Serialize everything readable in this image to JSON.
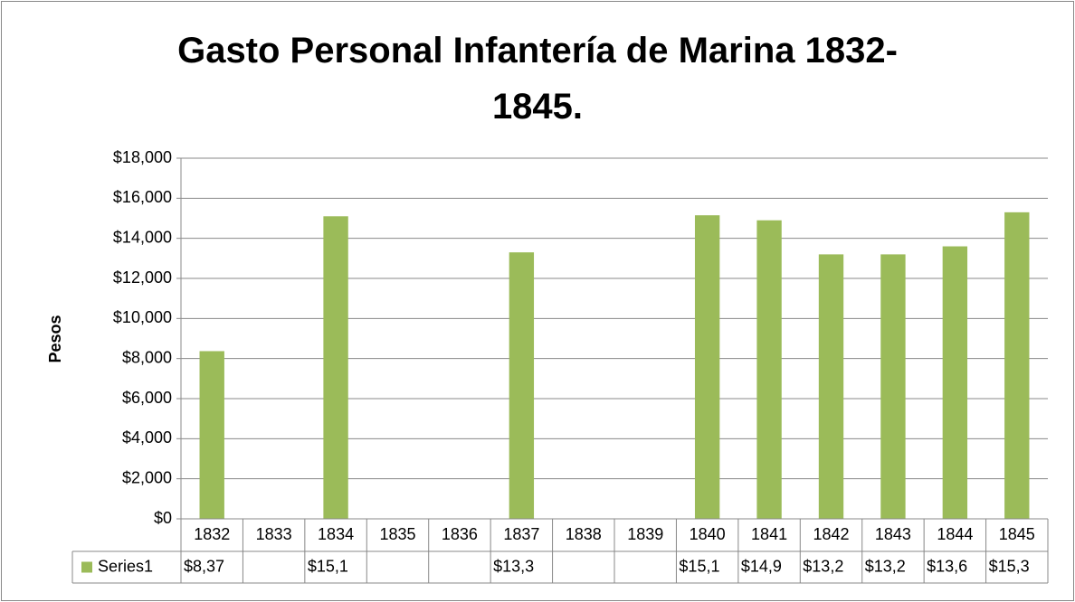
{
  "chart_data": {
    "type": "bar",
    "title": "Gasto Personal Infantería de Marina 1832-1845.",
    "y_label": "Pesos",
    "categories": [
      "1832",
      "1833",
      "1834",
      "1835",
      "1836",
      "1837",
      "1838",
      "1839",
      "1840",
      "1841",
      "1842",
      "1843",
      "1844",
      "1845"
    ],
    "series": [
      {
        "name": "Series1",
        "color": "#9bbb59",
        "values": [
          8370,
          null,
          15100,
          null,
          null,
          13300,
          null,
          null,
          15150,
          14900,
          13200,
          13200,
          13600,
          15300
        ],
        "value_labels": [
          "$8,37",
          null,
          "$15,1",
          null,
          null,
          "$13,3",
          null,
          null,
          "$15,1",
          "$14,9",
          "$13,2",
          "$13,2",
          "$13,6",
          "$15,3"
        ]
      }
    ],
    "ylim": [
      0,
      18000
    ],
    "yticks": [
      {
        "value": 0,
        "label": "$0"
      },
      {
        "value": 2000,
        "label": "$2,000"
      },
      {
        "value": 4000,
        "label": "$4,000"
      },
      {
        "value": 6000,
        "label": "$6,000"
      },
      {
        "value": 8000,
        "label": "$8,000"
      },
      {
        "value": 10000,
        "label": "$10,000"
      },
      {
        "value": 12000,
        "label": "$12,000"
      },
      {
        "value": 14000,
        "label": "$14,000"
      },
      {
        "value": 16000,
        "label": "$16,000"
      },
      {
        "value": 18000,
        "label": "$18,000"
      }
    ],
    "grid": true,
    "data_table": true
  }
}
